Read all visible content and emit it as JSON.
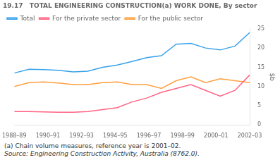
{
  "chart_data": {
    "type": "line",
    "title": "19.17   TOTAL ENGINEERING CONSTRUCTION(a) WORK DONE, By sector",
    "ylabel": "$b",
    "annotations": [
      "(a) Chain volume measures, reference year is 2001–02.",
      "Source: Engineering Construction Activity, Australia (8762.0)."
    ],
    "x": [
      0,
      0.875,
      1.75,
      2.625,
      3.5,
      4.375,
      5.25,
      6.125,
      7,
      7.875,
      8.75,
      9.625,
      10.5,
      11.375,
      12.25,
      13.125,
      14
    ],
    "xlim": [
      0,
      14
    ],
    "xticks": [
      {
        "value": 0,
        "label": "1988–89"
      },
      {
        "value": 2,
        "label": "1990–91"
      },
      {
        "value": 4,
        "label": "1992–93"
      },
      {
        "value": 6,
        "label": "1994–95"
      },
      {
        "value": 8,
        "label": "1996–97"
      },
      {
        "value": 10,
        "label": "1998–99"
      },
      {
        "value": 12,
        "label": "2000–01"
      },
      {
        "value": 14,
        "label": "2002–03"
      }
    ],
    "ylim": [
      0,
      25
    ],
    "yticks": [
      0,
      5,
      10,
      15,
      20,
      25
    ],
    "grid": false,
    "series": [
      {
        "name": "Total",
        "values": [
          13.5,
          14.5,
          14.4,
          14.2,
          13.8,
          14.0,
          15.0,
          15.6,
          16.5,
          17.5,
          18.0,
          21.0,
          21.2,
          20.0,
          19.5,
          20.5,
          24.0
        ]
      },
      {
        "name": "For the private sector",
        "values": [
          3.5,
          3.5,
          3.4,
          3.3,
          3.3,
          3.5,
          4.0,
          4.5,
          6.0,
          7.0,
          8.5,
          9.5,
          10.5,
          9.0,
          7.5,
          9.0,
          13.0
        ]
      },
      {
        "name": "For the public sector",
        "values": [
          10.0,
          11.0,
          11.2,
          10.9,
          10.5,
          10.5,
          11.0,
          11.2,
          10.5,
          10.5,
          9.5,
          11.5,
          12.5,
          11.0,
          12.0,
          11.5,
          11.0
        ]
      }
    ]
  }
}
